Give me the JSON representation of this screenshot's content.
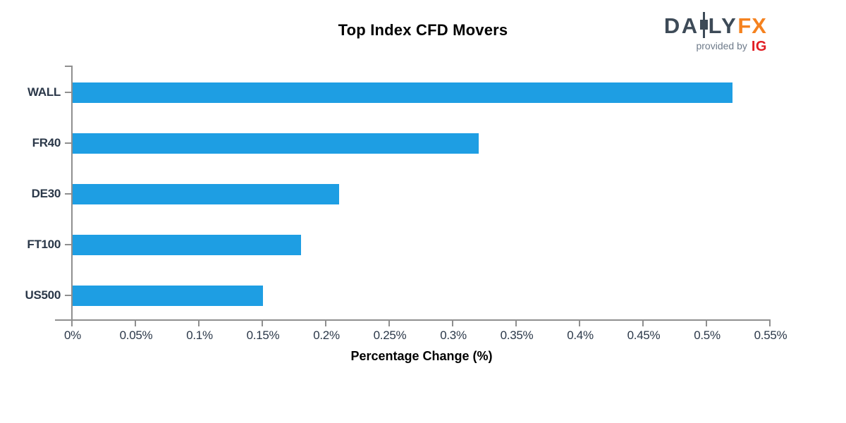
{
  "title": "Top Index CFD Movers",
  "logo": {
    "brand_left": "DA",
    "brand_mid": "LY",
    "brand_fx": "FX",
    "tagline": "provided by",
    "provider": "IG",
    "colors": {
      "slate": "#3d4a57",
      "orange": "#f5821f",
      "tagline_gray": "#6e7b8a",
      "provider_red": "#e11c22"
    }
  },
  "chart_data": {
    "type": "bar",
    "orientation": "horizontal",
    "title": "Top Index CFD Movers",
    "categories": [
      "WALL",
      "FR40",
      "DE30",
      "FT100",
      "US500"
    ],
    "values": [
      0.52,
      0.32,
      0.21,
      0.18,
      0.15
    ],
    "unit": "%",
    "xlabel": "Percentage Change (%)",
    "ylabel": "",
    "xlim": [
      0,
      0.55
    ],
    "x_ticks": [
      {
        "value": 0,
        "label": "0%"
      },
      {
        "value": 0.05,
        "label": "0.05%"
      },
      {
        "value": 0.1,
        "label": "0.1%"
      },
      {
        "value": 0.15,
        "label": "0.15%"
      },
      {
        "value": 0.2,
        "label": "0.2%"
      },
      {
        "value": 0.25,
        "label": "0.25%"
      },
      {
        "value": 0.3,
        "label": "0.3%"
      },
      {
        "value": 0.35,
        "label": "0.35%"
      },
      {
        "value": 0.4,
        "label": "0.4%"
      },
      {
        "value": 0.45,
        "label": "0.45%"
      },
      {
        "value": 0.5,
        "label": "0.5%"
      },
      {
        "value": 0.55,
        "label": "0.55%"
      }
    ],
    "grid": false,
    "legend": false,
    "bar_color": "#1e9ee3",
    "axis_color": "#8f8f8f",
    "label_color": "#2b3849"
  }
}
